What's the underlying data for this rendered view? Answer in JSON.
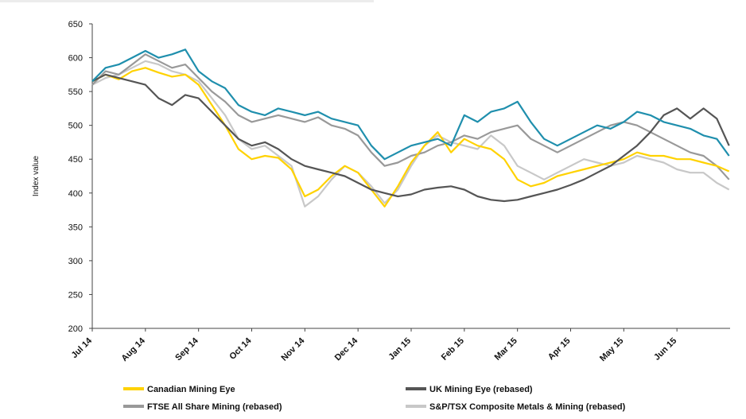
{
  "chart_data": {
    "type": "line",
    "title": "",
    "xlabel": "",
    "ylabel": "Index value",
    "ylim": [
      200,
      650
    ],
    "yticks": [
      200,
      250,
      300,
      350,
      400,
      450,
      500,
      550,
      600,
      650
    ],
    "x_range": [
      0,
      12
    ],
    "xtick_labels": [
      "Jul 14",
      "Aug 14",
      "Sep 14",
      "Oct 14",
      "Nov 14",
      "Dec 14",
      "Jan 15",
      "Feb 15",
      "Mar 15",
      "Apr 15",
      "May 15",
      "Jun 15"
    ],
    "grid": false,
    "legend": "bottom",
    "series": [
      {
        "name": "Canadian Mining Eye",
        "color": "#ffd200",
        "x": [
          0,
          0.25,
          0.5,
          0.75,
          1.0,
          1.25,
          1.5,
          1.75,
          2.0,
          2.25,
          2.5,
          2.75,
          3.0,
          3.25,
          3.5,
          3.75,
          4.0,
          4.25,
          4.5,
          4.75,
          5.0,
          5.25,
          5.5,
          5.75,
          6.0,
          6.25,
          6.5,
          6.75,
          7.0,
          7.25,
          7.5,
          7.75,
          8.0,
          8.25,
          8.5,
          8.75,
          9.0,
          9.25,
          9.5,
          9.75,
          10.0,
          10.25,
          10.5,
          10.75,
          11.0,
          11.25,
          11.5,
          11.75,
          11.98
        ],
        "values": [
          565,
          575,
          568,
          580,
          585,
          578,
          572,
          575,
          560,
          530,
          500,
          465,
          450,
          455,
          452,
          435,
          395,
          405,
          425,
          440,
          430,
          405,
          380,
          410,
          445,
          470,
          490,
          460,
          480,
          470,
          465,
          450,
          420,
          410,
          415,
          425,
          430,
          435,
          440,
          445,
          450,
          460,
          455,
          455,
          450,
          450,
          445,
          440,
          432
        ]
      },
      {
        "name": "UK Mining Eye (rebased)",
        "color": "#555555",
        "x": [
          0,
          0.25,
          0.5,
          0.75,
          1.0,
          1.25,
          1.5,
          1.75,
          2.0,
          2.25,
          2.5,
          2.75,
          3.0,
          3.25,
          3.5,
          3.75,
          4.0,
          4.25,
          4.5,
          4.75,
          5.0,
          5.25,
          5.5,
          5.75,
          6.0,
          6.25,
          6.5,
          6.75,
          7.0,
          7.25,
          7.5,
          7.75,
          8.0,
          8.25,
          8.5,
          8.75,
          9.0,
          9.25,
          9.5,
          9.75,
          10.0,
          10.25,
          10.5,
          10.75,
          11.0,
          11.25,
          11.5,
          11.75,
          11.98
        ],
        "values": [
          565,
          575,
          570,
          565,
          560,
          540,
          530,
          545,
          540,
          520,
          500,
          480,
          470,
          475,
          465,
          450,
          440,
          435,
          430,
          425,
          415,
          405,
          400,
          395,
          398,
          405,
          408,
          410,
          405,
          395,
          390,
          388,
          390,
          395,
          400,
          405,
          412,
          420,
          430,
          440,
          455,
          470,
          490,
          515,
          525,
          510,
          525,
          510,
          470
        ]
      },
      {
        "name": "FTSE All Share Mining (rebased)",
        "color": "#999999",
        "x": [
          0,
          0.25,
          0.5,
          0.75,
          1.0,
          1.25,
          1.5,
          1.75,
          2.0,
          2.25,
          2.5,
          2.75,
          3.0,
          3.25,
          3.5,
          3.75,
          4.0,
          4.25,
          4.5,
          4.75,
          5.0,
          5.25,
          5.5,
          5.75,
          6.0,
          6.25,
          6.5,
          6.75,
          7.0,
          7.25,
          7.5,
          7.75,
          8.0,
          8.25,
          8.5,
          8.75,
          9.0,
          9.25,
          9.5,
          9.75,
          10.0,
          10.25,
          10.5,
          10.75,
          11.0,
          11.25,
          11.5,
          11.75,
          11.98
        ],
        "values": [
          560,
          580,
          575,
          590,
          605,
          595,
          585,
          590,
          570,
          550,
          535,
          515,
          505,
          510,
          515,
          510,
          505,
          512,
          500,
          495,
          485,
          460,
          440,
          445,
          455,
          460,
          470,
          475,
          485,
          480,
          490,
          495,
          500,
          480,
          470,
          460,
          470,
          480,
          490,
          500,
          505,
          500,
          490,
          480,
          470,
          460,
          455,
          440,
          420
        ]
      },
      {
        "name": "S&P/TSX Composite Metals & Mining (rebased)",
        "color": "#c8c8c8",
        "x": [
          0,
          0.25,
          0.5,
          0.75,
          1.0,
          1.25,
          1.5,
          1.75,
          2.0,
          2.25,
          2.5,
          2.75,
          3.0,
          3.25,
          3.5,
          3.75,
          4.0,
          4.25,
          4.5,
          4.75,
          5.0,
          5.25,
          5.5,
          5.75,
          6.0,
          6.25,
          6.5,
          6.75,
          7.0,
          7.25,
          7.5,
          7.75,
          8.0,
          8.25,
          8.5,
          8.75,
          9.0,
          9.25,
          9.5,
          9.75,
          10.0,
          10.25,
          10.5,
          10.75,
          11.0,
          11.25,
          11.5,
          11.75,
          11.98
        ],
        "values": [
          560,
          570,
          575,
          585,
          595,
          590,
          580,
          575,
          565,
          540,
          515,
          480,
          465,
          470,
          455,
          440,
          380,
          395,
          420,
          440,
          430,
          410,
          385,
          405,
          440,
          470,
          485,
          475,
          470,
          465,
          485,
          470,
          440,
          430,
          420,
          430,
          440,
          450,
          445,
          440,
          445,
          455,
          450,
          445,
          435,
          430,
          430,
          415,
          405
        ]
      },
      {
        "name": "",
        "color": "#1f8fad",
        "x": [
          0,
          0.25,
          0.5,
          0.75,
          1.0,
          1.25,
          1.5,
          1.75,
          2.0,
          2.25,
          2.5,
          2.75,
          3.0,
          3.25,
          3.5,
          3.75,
          4.0,
          4.25,
          4.5,
          4.75,
          5.0,
          5.25,
          5.5,
          5.75,
          6.0,
          6.25,
          6.5,
          6.75,
          7.0,
          7.25,
          7.5,
          7.75,
          8.0,
          8.25,
          8.5,
          8.75,
          9.0,
          9.25,
          9.5,
          9.75,
          10.0,
          10.25,
          10.5,
          10.75,
          11.0,
          11.25,
          11.5,
          11.75,
          11.98
        ],
        "values": [
          565,
          585,
          590,
          600,
          610,
          600,
          605,
          612,
          580,
          565,
          555,
          530,
          520,
          515,
          525,
          520,
          515,
          520,
          510,
          505,
          500,
          470,
          450,
          460,
          470,
          475,
          480,
          470,
          515,
          505,
          520,
          525,
          535,
          505,
          480,
          470,
          480,
          490,
          500,
          495,
          505,
          520,
          515,
          505,
          500,
          495,
          485,
          480,
          455
        ]
      }
    ]
  }
}
